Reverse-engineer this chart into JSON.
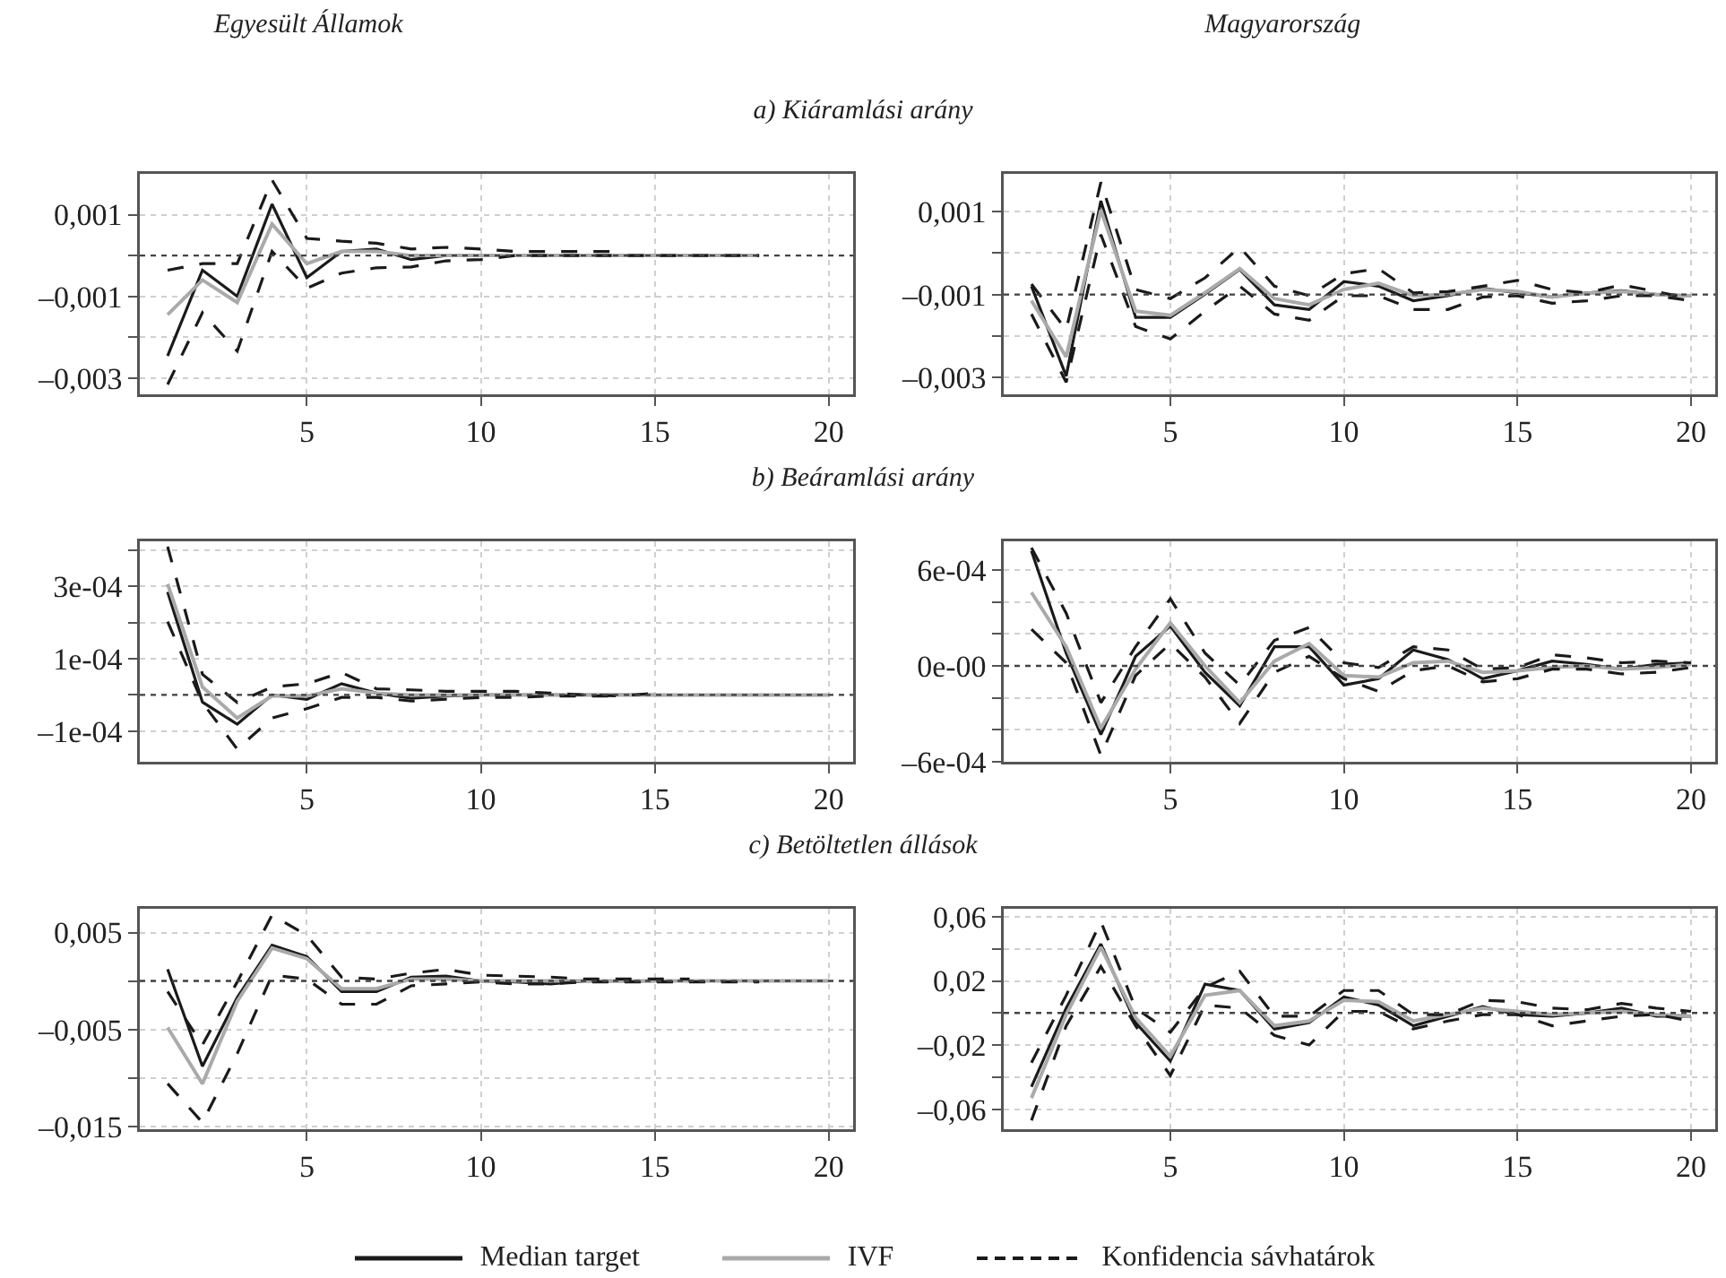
{
  "chart_data": [
    {
      "type": "line",
      "title": "a) Kiáramlási arány",
      "subtitle": "Egyesült Államok",
      "x": [
        1,
        2,
        3,
        4,
        5,
        6,
        7,
        8,
        9,
        10,
        11,
        12,
        13,
        14,
        15,
        16,
        17,
        18
      ],
      "xlim": [
        0.2,
        20.7
      ],
      "xticks": [
        5,
        10,
        15,
        20
      ],
      "ylim": [
        -0.0034,
        0.002
      ],
      "yticks": [
        {
          "value": 0.001,
          "label": "0,001"
        },
        {
          "value": 0,
          "label": null
        },
        {
          "value": -0.001,
          "label": "–0,001"
        },
        {
          "value": -0.002,
          "label": null
        },
        {
          "value": -0.003,
          "label": "–0,003"
        }
      ],
      "grid": true,
      "legend": "bottom",
      "ref_lines": [
        {
          "axis": "y",
          "value": 0,
          "line_style": "dotted",
          "color": "#444444"
        }
      ],
      "series": [
        {
          "name": "Median target",
          "color": "#1a1a1a",
          "line_style": "solid",
          "values": [
            -0.00246,
            -0.00036,
            -0.001,
            0.00126,
            -0.00054,
            0.0001,
            0.00016,
            -0.0001,
            0,
            0,
            0,
            0,
            0,
            0,
            null,
            null,
            null,
            null
          ]
        },
        {
          "name": "IVF",
          "color": "#aaaaaa",
          "line_style": "solid",
          "values": [
            -0.00145,
            -0.0006,
            -0.00115,
            0.00077,
            -0.0002,
            0.0001,
            0.0001,
            0,
            0,
            0,
            0,
            0,
            0,
            0,
            0,
            0,
            0,
            0
          ]
        },
        {
          "name": "Konfidencia sávhatárok",
          "color": "#1a1a1a",
          "line_style": "dashed",
          "values": [
            -0.00036,
            -0.0002,
            -0.0002,
            0.00185,
            0.00042,
            0.00035,
            0.0003,
            0.00016,
            0.0002,
            0.00016,
            0.0001,
            0.0001,
            0.0001,
            0.0001,
            null,
            null,
            null,
            null
          ]
        },
        {
          "color": "#1a1a1a",
          "line_style": "dashed",
          "values": [
            -0.00316,
            -0.0014,
            -0.00234,
            0.0001,
            -0.0008,
            -0.00043,
            -0.0003,
            -0.00028,
            -0.00013,
            -0.0001,
            0,
            0,
            0,
            0,
            0,
            0,
            0,
            0
          ]
        }
      ]
    },
    {
      "type": "line",
      "subtitle": "Magyarország",
      "x": [
        1,
        2,
        3,
        4,
        5,
        6,
        7,
        8,
        9,
        10,
        11,
        12,
        13,
        14,
        15,
        16,
        17,
        18,
        19,
        20
      ],
      "xlim": [
        0.2,
        20.7
      ],
      "xticks": [
        5,
        10,
        15,
        20
      ],
      "ylim": [
        -0.0034,
        0.0019
      ],
      "yticks": [
        {
          "value": 0.001,
          "label": "0,001"
        },
        {
          "value": 0,
          "label": null
        },
        {
          "value": -0.001,
          "label": "–0,001"
        },
        {
          "value": -0.002,
          "label": null
        },
        {
          "value": -0.003,
          "label": "–0,003"
        }
      ],
      "grid": true,
      "ref_lines": [
        {
          "axis": "y",
          "value": -0.001,
          "line_style": "dotted",
          "color": "#444444"
        }
      ],
      "series": [
        {
          "color": "#1a1a1a",
          "line_style": "solid",
          "values": [
            -0.0008,
            -0.00296,
            0.00125,
            -0.00155,
            -0.00155,
            -0.00099,
            -0.0004,
            -0.00125,
            -0.00136,
            -0.00069,
            -0.0008,
            -0.00115,
            -0.00103,
            -0.00085,
            -0.00096,
            -0.00106,
            -0.00096,
            -0.00091,
            -0.001,
            -0.00103
          ]
        },
        {
          "color": "#aaaaaa",
          "line_style": "solid",
          "values": [
            -0.00115,
            -0.0025,
            0.00103,
            -0.0014,
            -0.0015,
            -0.00096,
            -0.00038,
            -0.0011,
            -0.00125,
            -0.00088,
            -0.00073,
            -0.00103,
            -0.001,
            -0.00088,
            -0.00093,
            -0.00106,
            -0.00097,
            -0.00093,
            -0.001,
            -0.00103
          ]
        },
        {
          "color": "#1a1a1a",
          "line_style": "dashed",
          "values": [
            -0.00075,
            -0.00185,
            0.0017,
            -0.00088,
            -0.0011,
            -0.0006,
            0.00014,
            -0.0008,
            -0.00103,
            -0.0005,
            -0.00038,
            -0.00096,
            -0.00093,
            -0.0008,
            -0.00066,
            -0.00088,
            -0.00096,
            -0.00077,
            -0.00093,
            -0.0011
          ]
        },
        {
          "color": "#1a1a1a",
          "line_style": "dashed",
          "values": [
            -0.00147,
            -0.00311,
            0.00044,
            -0.00177,
            -0.00207,
            -0.0014,
            -0.0008,
            -0.00147,
            -0.00162,
            -0.00103,
            -0.00103,
            -0.00136,
            -0.00136,
            -0.00106,
            -0.00103,
            -0.00121,
            -0.00115,
            -0.00103,
            -0.00103,
            -0.00115
          ]
        }
      ]
    },
    {
      "type": "line",
      "title": "b) Beáramlási arány",
      "x": [
        1,
        2,
        3,
        4,
        5,
        6,
        7,
        8,
        9,
        10,
        11,
        12,
        13,
        14,
        15,
        16,
        17,
        18,
        19,
        20
      ],
      "xlim": [
        0.2,
        20.7
      ],
      "xticks": [
        5,
        10,
        15,
        20
      ],
      "ylim": [
        -0.000185,
        0.000425
      ],
      "yticks": [
        {
          "value": 0.0004,
          "label": null
        },
        {
          "value": 0.0003,
          "label": "3e-04"
        },
        {
          "value": 0.0002,
          "label": null
        },
        {
          "value": 0.0001,
          "label": "1e-04"
        },
        {
          "value": 0,
          "label": null
        },
        {
          "value": -0.0001,
          "label": "–1e-04"
        }
      ],
      "grid": true,
      "ref_lines": [
        {
          "axis": "y",
          "value": 0,
          "line_style": "dotted",
          "color": "#444444"
        }
      ],
      "series": [
        {
          "color": "#1a1a1a",
          "line_style": "solid",
          "values": [
            0.000285,
            -2e-05,
            -8.1e-05,
            0,
            -1.2e-05,
            3.1e-05,
            5e-06,
            -9e-06,
            -3e-06,
            0,
            0,
            0,
            0,
            0,
            0,
            null,
            null,
            null,
            null,
            null
          ]
        },
        {
          "color": "#aaaaaa",
          "line_style": "solid",
          "values": [
            0.000307,
            2.2e-05,
            -6.4e-05,
            -3e-06,
            -3e-06,
            1.7e-05,
            5e-06,
            0,
            0,
            0,
            0,
            0,
            0,
            0,
            0,
            0,
            0,
            0,
            0,
            0
          ]
        },
        {
          "color": "#1a1a1a",
          "line_style": "dashed",
          "values": [
            0.00041,
            5.7e-05,
            -2.1e-05,
            2.2e-05,
            3.1e-05,
            6.2e-05,
            1.7e-05,
            1.4e-05,
            1e-05,
            1e-05,
            1e-05,
            5e-06,
            0,
            -3e-06,
            5e-06,
            null,
            null,
            null,
            null,
            null
          ]
        },
        {
          "color": "#1a1a1a",
          "line_style": "dashed",
          "values": [
            0.000203,
            -2.1e-05,
            -0.00015,
            -6.4e-05,
            -3.8e-05,
            -7e-06,
            -7e-06,
            -1.7e-05,
            -1.2e-05,
            -7e-06,
            -7e-06,
            -3e-06,
            -3e-06,
            -3e-06,
            null,
            null,
            null,
            null,
            null,
            null
          ]
        }
      ]
    },
    {
      "type": "line",
      "x": [
        1,
        2,
        3,
        4,
        5,
        6,
        7,
        8,
        9,
        10,
        11,
        12,
        13,
        14,
        15,
        16,
        17,
        18,
        19,
        20
      ],
      "xlim": [
        0.2,
        20.7
      ],
      "xticks": [
        5,
        10,
        15,
        20
      ],
      "ylim": [
        -0.0006,
        0.00078
      ],
      "yticks": [
        {
          "value": 0.0006,
          "label": "6e-04"
        },
        {
          "value": 0.0004,
          "label": null
        },
        {
          "value": 0.0002,
          "label": null
        },
        {
          "value": 0,
          "label": "0e-00"
        },
        {
          "value": -0.0002,
          "label": null
        },
        {
          "value": -0.0004,
          "label": null
        },
        {
          "value": -0.0006,
          "label": "–6e-04"
        }
      ],
      "grid": true,
      "ref_lines": [
        {
          "axis": "y",
          "value": 0,
          "line_style": "dotted",
          "color": "#444444"
        }
      ],
      "series": [
        {
          "color": "#1a1a1a",
          "line_style": "solid",
          "values": [
            0.00072,
            8e-05,
            -0.00043,
            6e-05,
            0.00025,
            -4e-05,
            -0.00025,
            0.00012,
            0.00012,
            -0.00012,
            -8e-05,
            0.0001,
            4e-05,
            -8e-05,
            -3e-05,
            3e-05,
            1e-05,
            -2e-05,
            1e-05,
            2e-05
          ]
        },
        {
          "color": "#aaaaaa",
          "line_style": "solid",
          "values": [
            0.00046,
            0.00012,
            -0.00039,
            -2e-05,
            0.00027,
            0,
            -0.00023,
            3e-05,
            0.00014,
            -6e-05,
            -7e-05,
            2e-05,
            3e-05,
            -4e-05,
            -3e-05,
            -1e-05,
            0,
            -2e-05,
            -1e-05,
            1e-05
          ]
        },
        {
          "color": "#1a1a1a",
          "line_style": "dashed",
          "values": [
            0.00074,
            0.00033,
            -0.00023,
            0.00012,
            0.00042,
            8e-05,
            -0.00012,
            0.00016,
            0.00024,
            2e-05,
            -1e-05,
            0.00012,
            0.0001,
            -2e-05,
            -1e-05,
            7e-05,
            5e-05,
            2e-05,
            3e-05,
            2e-05
          ]
        },
        {
          "color": "#1a1a1a",
          "line_style": "dashed",
          "values": [
            0.00023,
            2e-05,
            -0.00056,
            -6e-05,
            0.00014,
            -7e-05,
            -0.00036,
            -4e-05,
            6e-05,
            -8e-05,
            -0.00016,
            -3e-05,
            0,
            -0.0001,
            -8e-05,
            -2e-05,
            -2e-05,
            -5e-05,
            -4e-05,
            -1e-05
          ]
        }
      ]
    },
    {
      "type": "line",
      "title": "c) Betöltetlen állások",
      "x": [
        1,
        2,
        3,
        4,
        5,
        6,
        7,
        8,
        9,
        10,
        11,
        12,
        13,
        14,
        15,
        16,
        17,
        18,
        19,
        20
      ],
      "xlim": [
        0.2,
        20.7
      ],
      "xticks": [
        5,
        10,
        15,
        20
      ],
      "ylim": [
        -0.0153,
        0.00745
      ],
      "yticks": [
        {
          "value": 0.005,
          "label": "0,005"
        },
        {
          "value": 0,
          "label": null
        },
        {
          "value": -0.005,
          "label": "–0,005"
        },
        {
          "value": -0.01,
          "label": null
        },
        {
          "value": -0.015,
          "label": "–0,015"
        }
      ],
      "grid": true,
      "ref_lines": [
        {
          "axis": "y",
          "value": 0,
          "line_style": "dotted",
          "color": "#444444"
        }
      ],
      "series": [
        {
          "color": "#1a1a1a",
          "line_style": "solid",
          "values": [
            0.0012,
            -0.0088,
            -0.0017,
            0.0037,
            0.0025,
            -0.0011,
            -0.0011,
            0.0004,
            0.0005,
            0,
            -0.0001,
            -0.0003,
            0,
            0,
            0,
            null,
            null,
            null,
            null,
            null
          ]
        },
        {
          "color": "#aaaaaa",
          "line_style": "solid",
          "values": [
            -0.0048,
            -0.0106,
            -0.0021,
            0.0034,
            0.0023,
            -0.0008,
            -0.0008,
            0.0002,
            0.0002,
            0,
            0,
            0,
            0,
            0,
            0,
            0,
            0,
            0,
            0,
            0
          ]
        },
        {
          "color": "#1a1a1a",
          "line_style": "dashed",
          "values": [
            -0.0011,
            -0.0066,
            -0.0001,
            0.0068,
            0.0047,
            0.0004,
            0.0002,
            0.0008,
            0.0012,
            0.0006,
            0.0005,
            0.0004,
            0.0002,
            0.0002,
            0.0002,
            0.0002,
            null,
            null,
            null,
            null
          ]
        },
        {
          "color": "#1a1a1a",
          "line_style": "dashed",
          "values": [
            -0.0106,
            -0.0146,
            -0.0075,
            0.0006,
            0.0002,
            -0.0024,
            -0.0024,
            -0.0005,
            -0.0003,
            -0.0001,
            -0.0003,
            -0.0003,
            -0.0001,
            -0.0001,
            -0.0001,
            -0.0001,
            -0.0001,
            -0.0001,
            null,
            null
          ]
        }
      ]
    },
    {
      "type": "line",
      "x": [
        1,
        2,
        3,
        4,
        5,
        6,
        7,
        8,
        9,
        10,
        11,
        12,
        13,
        14,
        15,
        16,
        17,
        18,
        19,
        20
      ],
      "xlim": [
        0.2,
        20.7
      ],
      "xticks": [
        5,
        10,
        15,
        20
      ],
      "ylim": [
        -0.0725,
        0.065
      ],
      "yticks": [
        {
          "value": 0.06,
          "label": "0,06"
        },
        {
          "value": 0.04,
          "label": null
        },
        {
          "value": 0.02,
          "label": "0,02"
        },
        {
          "value": 0,
          "label": null
        },
        {
          "value": -0.02,
          "label": "–0,02"
        },
        {
          "value": -0.04,
          "label": null
        },
        {
          "value": -0.06,
          "label": "–0,06"
        }
      ],
      "grid": true,
      "ref_lines": [
        {
          "axis": "y",
          "value": 0,
          "line_style": "dotted",
          "color": "#444444"
        }
      ],
      "series": [
        {
          "color": "#1a1a1a",
          "line_style": "solid",
          "values": [
            -0.046,
            0.003,
            0.043,
            -0.006,
            -0.03,
            0.018,
            0.014,
            -0.01,
            -0.006,
            0.01,
            0.005,
            -0.008,
            -0.002,
            0.004,
            -0.001,
            -0.002,
            0,
            0.003,
            -0.002,
            -0.002
          ]
        },
        {
          "color": "#aaaaaa",
          "line_style": "solid",
          "values": [
            -0.053,
            -0.001,
            0.041,
            -0.003,
            -0.027,
            0.011,
            0.014,
            -0.008,
            -0.005,
            0.008,
            0.007,
            -0.005,
            -0.001,
            0.003,
            0.001,
            -0.001,
            0,
            0.001,
            -0.001,
            -0.002
          ]
        },
        {
          "color": "#1a1a1a",
          "line_style": "dashed",
          "values": [
            -0.031,
            0.011,
            0.057,
            0.003,
            -0.012,
            0.016,
            0.026,
            -0.002,
            -0.002,
            0.014,
            0.014,
            -0.001,
            -0.001,
            0.008,
            0.007,
            0.003,
            0.002,
            0.006,
            0.003,
            0.001
          ]
        },
        {
          "color": "#1a1a1a",
          "line_style": "dashed",
          "values": [
            -0.067,
            -0.008,
            0.029,
            -0.008,
            -0.039,
            0.005,
            0.003,
            -0.014,
            -0.02,
            0.001,
            0.001,
            -0.01,
            -0.005,
            -0.001,
            -0.001,
            -0.008,
            -0.005,
            -0.002,
            -0.001,
            -0.005
          ]
        }
      ]
    }
  ]
}
